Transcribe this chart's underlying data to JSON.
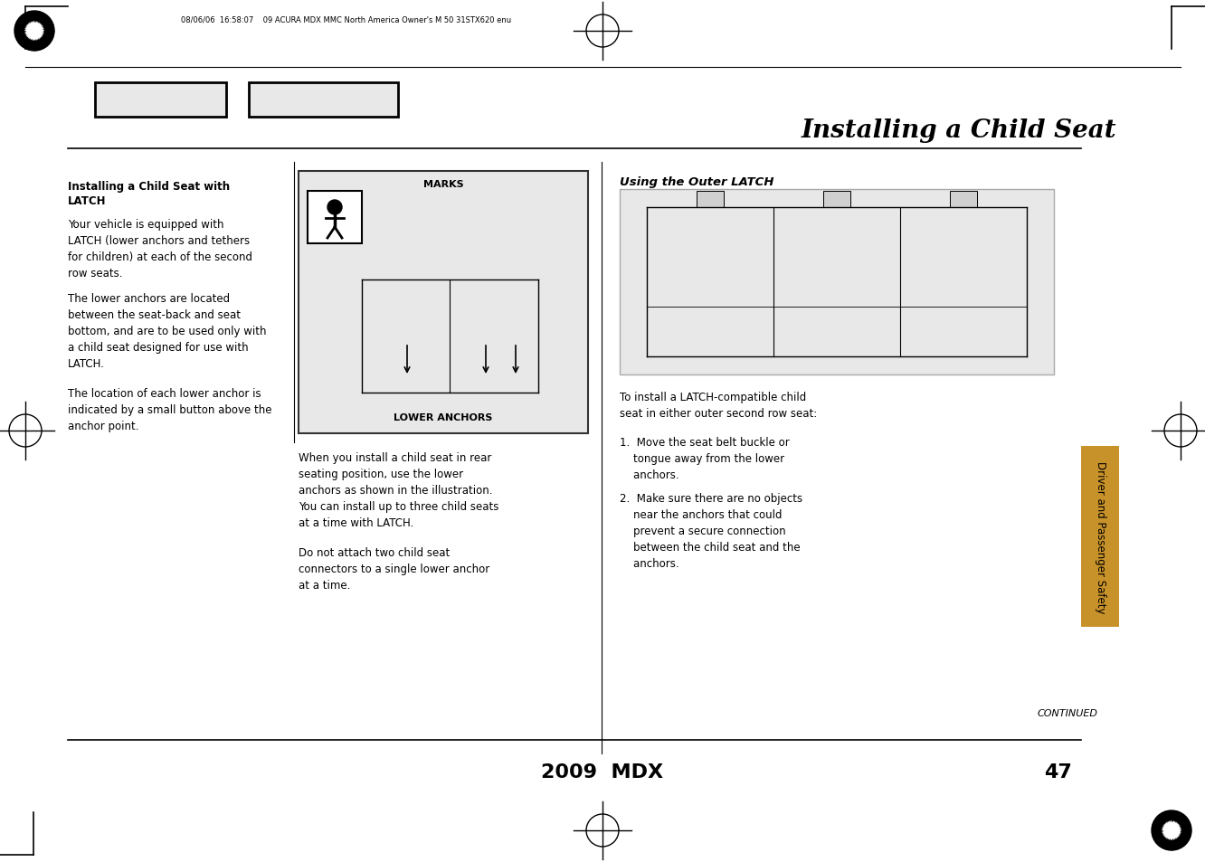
{
  "bg_color": "#ffffff",
  "page_title": "Installing a Child Seat",
  "header_meta": "08/06/06  16:58:07    09 ACURA MDX MMC North America Owner's M 50 31STX620 enu",
  "footer_model": "2009  MDX",
  "footer_page": "47",
  "continued": "CONTINUED",
  "sidebar_text": "Driver and Passenger Safety",
  "sidebar_color": "#c8922a",
  "left_heading_line1": "Installing a Child Seat with",
  "left_heading_line2": "LATCH",
  "left_para1": "Your vehicle is equipped with\nLATCH (lower anchors and tethers\nfor children) at each of the second\nrow seats.",
  "left_para2": "The lower anchors are located\nbetween the seat-back and seat\nbottom, and are to be used only with\na child seat designed for use with\nLATCH.",
  "left_para3": "The location of each lower anchor is\nindicated by a small button above the\nanchor point.",
  "middle_label_top": "MARKS",
  "middle_label_bottom": "LOWER ANCHORS",
  "middle_para1": "When you install a child seat in rear\nseating position, use the lower\nanchors as shown in the illustration.\nYou can install up to three child seats\nat a time with LATCH.",
  "middle_para2": "Do not attach two child seat\nconnectors to a single lower anchor\nat a time.",
  "right_heading": "Using the Outer LATCH",
  "right_para1": "To install a LATCH-compatible child\nseat in either outer second row seat:",
  "right_item1": "1.  Move the seat belt buckle or\n    tongue away from the lower\n    anchors.",
  "right_item2": "2.  Make sure there are no objects\n    near the anchors that could\n    prevent a secure connection\n    between the child seat and the\n    anchors."
}
